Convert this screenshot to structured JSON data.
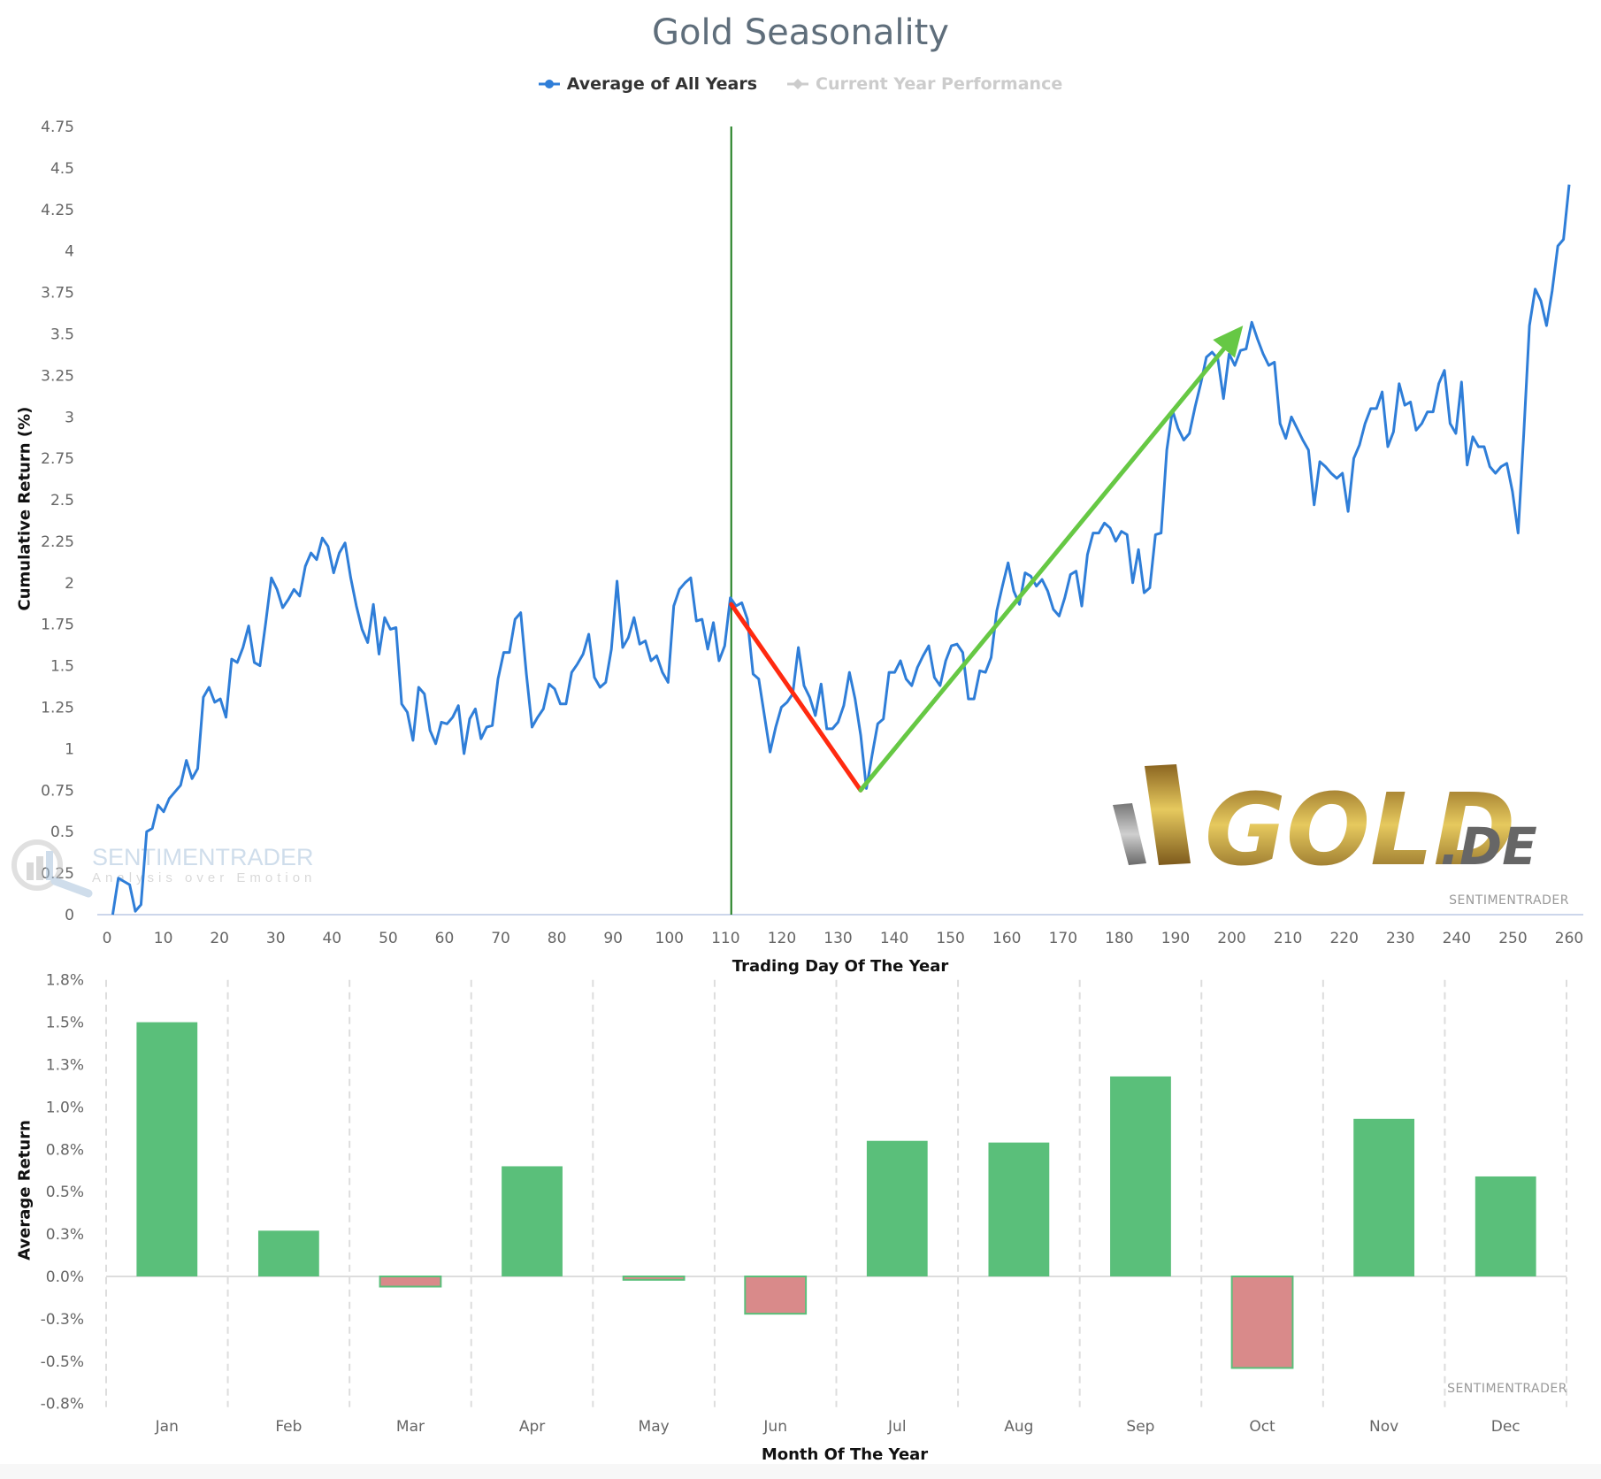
{
  "header": {
    "title": "Gold Seasonality"
  },
  "legend": [
    {
      "label": "Average of All Years",
      "color": "#2f7ed8",
      "active": true
    },
    {
      "label": "Current Year Performance",
      "color": "#cccccc",
      "active": false
    }
  ],
  "top_chart": {
    "ylabel": "Cumulative Return (%)",
    "xlabel": "Trading Day Of The Year",
    "watermark": "SENTIMENTRADER",
    "watermark_logo": {
      "name": "SENTIMENTRADER",
      "tagline": "Analysis over Emotion"
    },
    "brand_logo": {
      "word": "GOLD",
      "suffix": ".DE"
    }
  },
  "bottom_chart": {
    "ylabel": "Average Return",
    "xlabel": "Month Of The Year",
    "watermark": "SENTIMENTRADER"
  },
  "colors": {
    "line": "#2f7ed8",
    "positive_bar": "#5abf7a",
    "negative_bar": "#d98a8a",
    "marker_line": "#1a7a1a",
    "down_arrow": "#ff2a10",
    "up_arrow": "#66c844"
  },
  "chart_data": [
    {
      "type": "line",
      "title": "Gold Seasonality",
      "xlabel": "Trading Day Of The Year",
      "ylabel": "Cumulative Return (%)",
      "xlim": [
        0,
        260
      ],
      "ylim": [
        0,
        4.75
      ],
      "xticks": [
        0,
        10,
        20,
        30,
        40,
        50,
        60,
        70,
        80,
        90,
        100,
        110,
        120,
        130,
        140,
        150,
        160,
        170,
        180,
        190,
        200,
        210,
        220,
        230,
        240,
        250,
        260
      ],
      "yticks": [
        "0",
        "0.25",
        "0.5",
        "0.75",
        "1",
        "1.25",
        "1.5",
        "1.75",
        "2",
        "2.25",
        "2.5",
        "2.75",
        "3",
        "3.25",
        "3.5",
        "3.75",
        "4",
        "4.25",
        "4.5",
        "4.75"
      ],
      "grid": false,
      "legend_position": "top",
      "series": [
        {
          "name": "Average of All Years",
          "x_start": 1,
          "x_end": 260,
          "values": [
            0,
            0.22,
            0.2,
            0.18,
            0.02,
            0.06,
            0.5,
            0.52,
            0.66,
            0.62,
            0.7,
            0.74,
            0.78,
            0.93,
            0.82,
            0.88,
            1.31,
            1.37,
            1.28,
            1.3,
            1.19,
            1.54,
            1.52,
            1.61,
            1.74,
            1.52,
            1.5,
            1.76,
            2.03,
            1.96,
            1.85,
            1.9,
            1.96,
            1.92,
            2.1,
            2.18,
            2.14,
            2.27,
            2.22,
            2.06,
            2.18,
            2.24,
            2.03,
            1.86,
            1.72,
            1.64,
            1.87,
            1.57,
            1.79,
            1.72,
            1.73,
            1.27,
            1.22,
            1.05,
            1.37,
            1.33,
            1.11,
            1.03,
            1.16,
            1.15,
            1.19,
            1.26,
            0.97,
            1.18,
            1.24,
            1.06,
            1.13,
            1.14,
            1.42,
            1.58,
            1.58,
            1.78,
            1.82,
            1.45,
            1.13,
            1.19,
            1.24,
            1.39,
            1.36,
            1.27,
            1.27,
            1.46,
            1.51,
            1.57,
            1.69,
            1.43,
            1.37,
            1.4,
            1.6,
            2.01,
            1.61,
            1.67,
            1.79,
            1.63,
            1.65,
            1.53,
            1.56,
            1.46,
            1.4,
            1.86,
            1.96,
            2.0,
            2.03,
            1.77,
            1.78,
            1.6,
            1.76,
            1.53,
            1.62,
            1.91,
            1.86,
            1.88,
            1.78,
            1.45,
            1.42,
            1.2,
            0.98,
            1.13,
            1.25,
            1.28,
            1.33,
            1.61,
            1.38,
            1.31,
            1.2,
            1.39,
            1.12,
            1.12,
            1.16,
            1.26,
            1.46,
            1.3,
            1.08,
            0.76,
            0.96,
            1.15,
            1.18,
            1.46,
            1.46,
            1.53,
            1.42,
            1.38,
            1.49,
            1.56,
            1.62,
            1.43,
            1.38,
            1.53,
            1.62,
            1.63,
            1.58,
            1.3,
            1.3,
            1.47,
            1.46,
            1.55,
            1.83,
            1.98,
            2.12,
            1.95,
            1.87,
            2.06,
            2.04,
            1.98,
            2.02,
            1.95,
            1.84,
            1.8,
            1.91,
            2.05,
            2.07,
            1.86,
            2.17,
            2.3,
            2.3,
            2.36,
            2.33,
            2.25,
            2.31,
            2.29,
            2.0,
            2.2,
            1.94,
            1.97,
            2.29,
            2.3,
            2.8,
            3.04,
            2.93,
            2.86,
            2.9,
            3.06,
            3.2,
            3.36,
            3.39,
            3.35,
            3.11,
            3.38,
            3.31,
            3.4,
            3.41,
            3.57,
            3.47,
            3.38,
            3.31,
            3.33,
            2.96,
            2.87,
            3.0,
            2.93,
            2.86,
            2.8,
            2.47,
            2.73,
            2.7,
            2.66,
            2.63,
            2.66,
            2.43,
            2.75,
            2.83,
            2.96,
            3.05,
            3.05,
            3.15,
            2.82,
            2.91,
            3.2,
            3.07,
            3.09,
            2.92,
            2.96,
            3.03,
            3.03,
            3.2,
            3.28,
            2.96,
            2.9,
            3.21,
            2.71,
            2.88,
            2.82,
            2.82,
            2.7,
            2.66,
            2.7,
            2.72,
            2.55,
            2.3,
            2.9,
            3.55,
            3.77,
            3.7,
            3.55,
            3.76,
            4.03,
            4.07,
            4.4
          ]
        },
        {
          "name": "Current Year Performance",
          "values": []
        }
      ],
      "annotations": [
        {
          "type": "vline",
          "x": 111,
          "color": "#1a7a1a"
        },
        {
          "type": "line",
          "from": [
            111,
            1.87
          ],
          "to": [
            134,
            0.75
          ],
          "color": "#ff2a10"
        },
        {
          "type": "arrow",
          "from": [
            134,
            0.75
          ],
          "to": [
            202,
            3.55
          ],
          "color": "#66c844"
        }
      ]
    },
    {
      "type": "bar",
      "xlabel": "Month Of The Year",
      "ylabel": "Average Return",
      "categories": [
        "Jan",
        "Feb",
        "Mar",
        "Apr",
        "May",
        "Jun",
        "Jul",
        "Aug",
        "Sep",
        "Oct",
        "Nov",
        "Dec"
      ],
      "values": [
        1.5,
        0.27,
        -0.06,
        0.65,
        -0.02,
        -0.22,
        0.8,
        0.79,
        1.18,
        -0.54,
        0.93,
        0.59
      ],
      "ylim": [
        -0.75,
        1.75
      ],
      "yticks": [
        "-0.8%",
        "-0.5%",
        "-0.3%",
        "0.0%",
        "0.3%",
        "0.5%",
        "0.8%",
        "1.0%",
        "1.3%",
        "1.5%",
        "1.8%"
      ],
      "ytick_values": [
        -0.75,
        -0.5,
        -0.25,
        0,
        0.25,
        0.5,
        0.75,
        1.0,
        1.25,
        1.5,
        1.75
      ],
      "grid": "vertical dashed between categories"
    }
  ]
}
